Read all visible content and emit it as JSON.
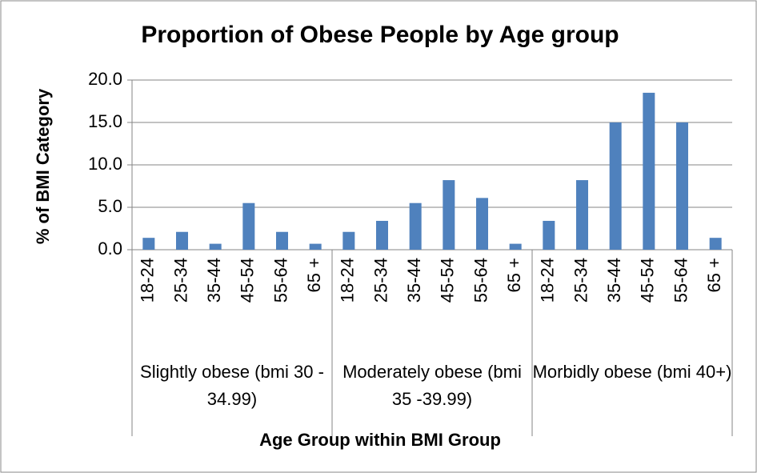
{
  "chart_data": {
    "type": "bar",
    "title": "Proportion of Obese People by Age group",
    "x_label": "Age Group within BMI Group",
    "y_label": "% of BMI Category",
    "categories": [
      "18-24",
      "25-34",
      "35-44",
      "45-54",
      "55-64",
      "65 +",
      "18-24",
      "25-34",
      "35-44",
      "45-54",
      "55-64",
      "65 +",
      "18-24",
      "25-34",
      "35-44",
      "45-54",
      "55-64",
      "65 +"
    ],
    "groups": [
      "Slightly obese (bmi 30 - 34.99)",
      "Moderately obese (bmi 35 -39.99)",
      "Morbidly obese (bmi 40+)"
    ],
    "values": [
      1.4,
      2.1,
      0.7,
      5.5,
      2.1,
      0.7,
      2.1,
      3.4,
      5.5,
      8.2,
      6.1,
      0.7,
      3.4,
      8.2,
      15.0,
      18.5,
      15.0,
      1.4
    ],
    "color": "#4f81bd",
    "ylim": [
      0,
      20
    ],
    "yticks": [
      {
        "value": 0,
        "label": "0.0"
      },
      {
        "value": 5,
        "label": "5.0"
      },
      {
        "value": 10,
        "label": "10.0"
      },
      {
        "value": 15,
        "label": "15.0"
      },
      {
        "value": 20,
        "label": "20.0"
      }
    ],
    "grid": true
  }
}
